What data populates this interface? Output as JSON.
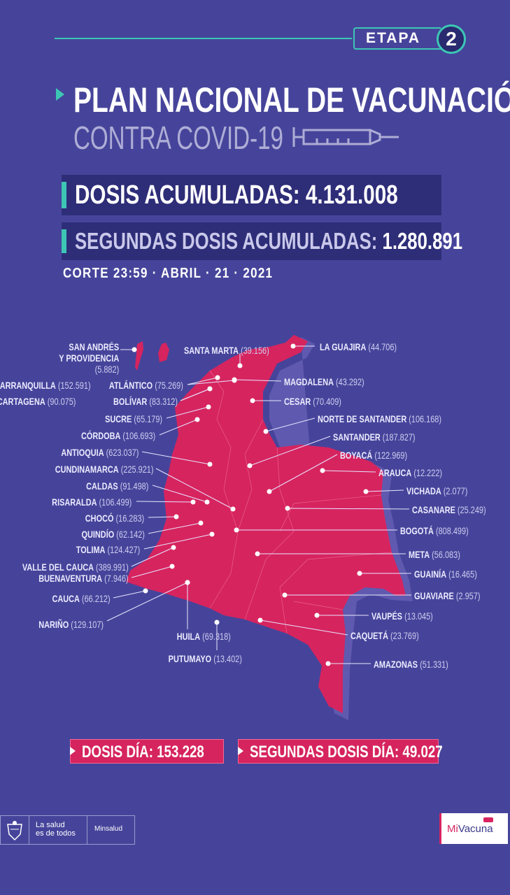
{
  "header": {
    "stage_label": "ETAPA",
    "stage_number": "2",
    "title": "PLAN NACIONAL DE VACUNACIÓN",
    "subtitle": "CONTRA COVID-19",
    "syringe_icon": "syringe-icon"
  },
  "totals": {
    "doses_label": "DOSIS ACUMULADAS:",
    "doses_value": "4.131.008",
    "second_label": "SEGUNDAS DOSIS ACUMULADAS:",
    "second_value": "1.280.891",
    "cutoff": "CORTE 23:59  · ABRIL · 21 · 2021"
  },
  "colors": {
    "background": "#46449a",
    "map": "#d6245f",
    "accent": "#3cc7b4",
    "box": "#2e2d78"
  },
  "regions": [
    {
      "name": "SAN ANDRÉS",
      "name2": "Y PROVIDENCIA",
      "value": "(5.882)"
    },
    {
      "name": "BARRANQUILLA",
      "value": "(152.591)"
    },
    {
      "name": "ATLÁNTICO",
      "value": "(75.269)"
    },
    {
      "name": "CARTAGENA",
      "value": "(90.075)"
    },
    {
      "name": "BOLÍVAR",
      "value": "(83.312)"
    },
    {
      "name": "SUCRE",
      "value": "(65.179)"
    },
    {
      "name": "CÓRDOBA",
      "value": "(106.693)"
    },
    {
      "name": "ANTIOQUIA",
      "value": "(623.037)"
    },
    {
      "name": "CUNDINAMARCA",
      "value": "(225.921)"
    },
    {
      "name": "CALDAS",
      "value": "(91.498)"
    },
    {
      "name": "RISARALDA",
      "value": "(106.499)"
    },
    {
      "name": "CHOCÓ",
      "value": "(16.283)"
    },
    {
      "name": "QUINDÍO",
      "value": "(62.142)"
    },
    {
      "name": "TOLIMA",
      "value": "(124.427)"
    },
    {
      "name": "VALLE DEL CAUCA",
      "value": "(389.991)"
    },
    {
      "name": "BUENAVENTURA",
      "value": "(7.946)"
    },
    {
      "name": "CAUCA",
      "value": "(66.212)"
    },
    {
      "name": "NARIÑO",
      "value": "(129.107)"
    },
    {
      "name": "HUILA",
      "value": "(69.318)"
    },
    {
      "name": "PUTUMAYO",
      "value": "(13.402)"
    },
    {
      "name": "SANTA MARTA",
      "value": "(39.156)"
    },
    {
      "name": "LA GUAJIRA",
      "value": "(44.706)"
    },
    {
      "name": "MAGDALENA",
      "value": "(43.292)"
    },
    {
      "name": "CESAR",
      "value": "(70.409)"
    },
    {
      "name": "NORTE DE SANTANDER",
      "value": "(106.168)"
    },
    {
      "name": "SANTANDER",
      "value": "(187.827)"
    },
    {
      "name": "BOYACÁ",
      "value": "(122.969)"
    },
    {
      "name": "ARAUCA",
      "value": "(12.222)"
    },
    {
      "name": "VICHADA",
      "value": "(2.077)"
    },
    {
      "name": "CASANARE",
      "value": "(25.249)"
    },
    {
      "name": "BOGOTÁ",
      "value": "(808.499)"
    },
    {
      "name": "META",
      "value": "(56.083)"
    },
    {
      "name": "GUAINÍA",
      "value": "(16.465)"
    },
    {
      "name": "GUAVIARE",
      "value": "(2.957)"
    },
    {
      "name": "VAUPÉS",
      "value": "(13.045)"
    },
    {
      "name": "CAQUETÁ",
      "value": "(23.769)"
    },
    {
      "name": "AMAZONAS",
      "value": "(51.331)"
    }
  ],
  "daily": {
    "doses_label": "DOSIS DÍA:",
    "doses_value": "153.228",
    "second_label": "SEGUNDAS DOSIS DÍA:",
    "second_value": "49.027"
  },
  "footer": {
    "slogan_line1": "La salud",
    "slogan_line2": "es de todos",
    "ministry": "Minsalud",
    "app_logo": "MiVacuna",
    "app_logo_mi": "Mi",
    "app_logo_rest": "Vacuna"
  }
}
